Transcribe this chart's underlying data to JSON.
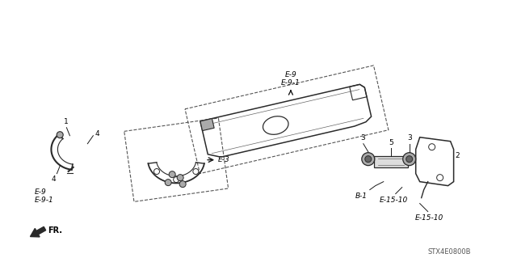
{
  "background_color": "#ffffff",
  "diagram_code": "STX4E0800B",
  "colors": {
    "line": "#1a1a1a",
    "dashed": "#555555",
    "background": "#ffffff",
    "text": "#000000",
    "part_dark": "#2a2a2a",
    "part_mid": "#666666",
    "part_light": "#aaaaaa"
  },
  "labels": {
    "E9_top_line1": "E-9",
    "E9_top_line2": "E-9-1",
    "E9_bot_line1": "E-9",
    "E9_bot_line2": "E-9-1",
    "E3": "E-3",
    "B1": "B-1",
    "E1510a": "E-15-10",
    "E1510b": "E-15-10",
    "FR": "FR.",
    "n1": "1",
    "n2": "2",
    "n3a": "3",
    "n3b": "3",
    "n4a": "4",
    "n4b": "4",
    "n5": "5"
  },
  "fontsizes": {
    "label": 6.5,
    "code": 6.0
  }
}
